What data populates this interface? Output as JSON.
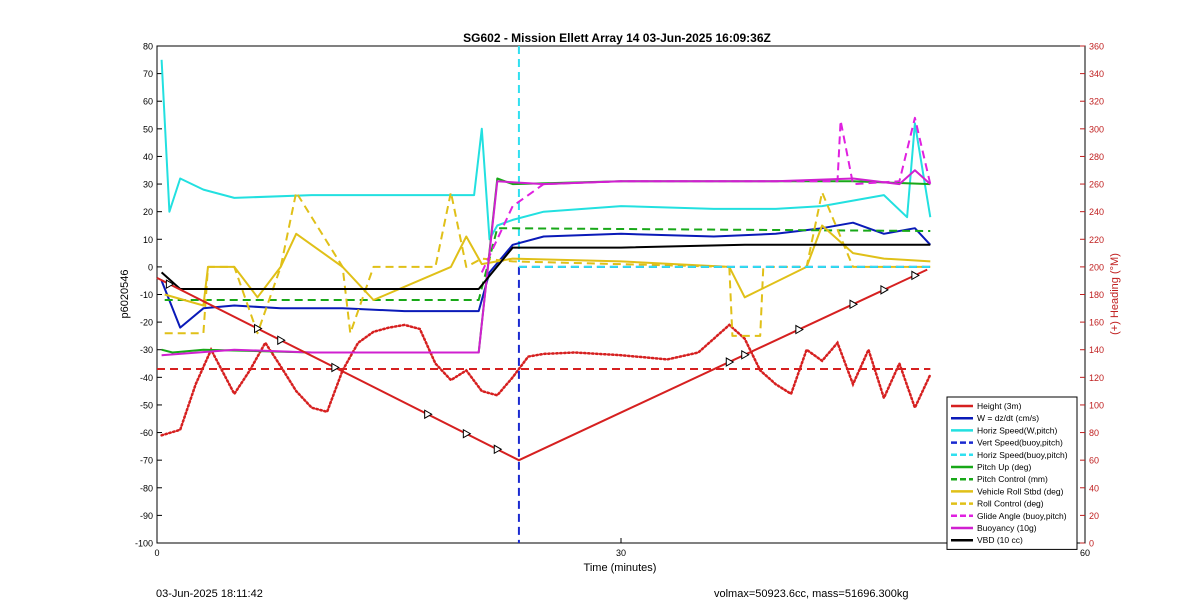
{
  "footer": {
    "timestamp": "03-Jun-2025 18:11:42",
    "info": "volmax=50923.6cc, mass=51696.300kg"
  },
  "chart_data": {
    "type": "line",
    "title": "SG602 - Mission Ellett Array 14 03-Jun-2025 16:09:36Z",
    "xlabel": "Time (minutes)",
    "ylabel": "p6020546",
    "y2label": "(+) Heading (°M)",
    "xlim": [
      0,
      60
    ],
    "ylim": [
      -100,
      80
    ],
    "y2lim": [
      0,
      360
    ],
    "xticks": [
      0,
      30,
      60
    ],
    "yticks": [
      -100,
      -90,
      -80,
      -70,
      -60,
      -50,
      -40,
      -30,
      -20,
      -10,
      0,
      10,
      20,
      30,
      40,
      50,
      60,
      70,
      80
    ],
    "y2ticks": [
      0,
      20,
      40,
      60,
      80,
      100,
      120,
      140,
      160,
      180,
      200,
      220,
      240,
      260,
      280,
      300,
      320,
      340,
      360
    ],
    "grid": false,
    "legend_position": "bottom-right",
    "apogee_time": 23.4,
    "series": [
      {
        "name": "Height (3m)",
        "color": "#d62020",
        "style": "solid",
        "x": [
          0,
          23.4,
          49.8
        ],
        "y": [
          -4,
          -70,
          -1
        ]
      },
      {
        "name": "W = dz/dt (cm/s)",
        "color": "#0a1ab8",
        "style": "solid",
        "x": [
          0.3,
          1.5,
          3,
          5,
          8,
          12,
          16,
          20.8,
          21.5,
          23,
          25,
          30,
          36,
          40,
          43,
          45,
          47,
          49,
          50
        ],
        "y": [
          -5,
          -22,
          -15,
          -14,
          -15,
          -15,
          -16,
          -16,
          -2,
          8,
          11,
          12,
          11,
          12,
          14,
          16,
          12,
          14,
          8
        ]
      },
      {
        "name": "Horiz Speed(W,pitch)",
        "color": "#22e0e0",
        "style": "solid",
        "x": [
          0.3,
          0.8,
          1.5,
          3,
          5,
          10,
          15,
          20.5,
          21,
          21.5,
          22,
          23,
          25,
          30,
          36,
          40,
          43,
          45,
          47,
          48.5,
          49,
          50
        ],
        "y": [
          75,
          20,
          32,
          28,
          25,
          26,
          26,
          26,
          50,
          10,
          15,
          17,
          20,
          22,
          21,
          21,
          22,
          24,
          26,
          18,
          52,
          18
        ]
      },
      {
        "name": "Vert Speed(buoy,pitch)",
        "color": "#1a2ad0",
        "style": "dashed",
        "x": [
          23.4,
          50
        ],
        "y": [
          0,
          0
        ]
      },
      {
        "name": "Horiz Speed(buoy,pitch)",
        "color": "#30e0f0",
        "style": "dashed",
        "x": [
          23.4,
          50
        ],
        "y": [
          0,
          0
        ]
      },
      {
        "name": "Pitch Up (deg)",
        "color": "#18a818",
        "style": "solid",
        "x": [
          0.3,
          1,
          3,
          10,
          20.8,
          22,
          23,
          30,
          40,
          45,
          50
        ],
        "y": [
          -30,
          -31,
          -30,
          -31,
          -31,
          32,
          30,
          31,
          31,
          31,
          30
        ]
      },
      {
        "name": "Pitch Control (mm)",
        "color": "#18a818",
        "style": "dashed",
        "x": [
          0.5,
          20.8,
          22,
          50
        ],
        "y": [
          -12,
          -12,
          14,
          13
        ]
      },
      {
        "name": "Vehicle Roll Stbd (deg)",
        "color": "#e0c018",
        "style": "solid",
        "x": [
          0.5,
          3,
          3.3,
          5,
          6.5,
          8,
          9,
          12,
          14,
          19,
          20,
          21,
          23,
          30,
          37,
          38,
          42,
          43,
          45,
          47,
          50
        ],
        "y": [
          -10,
          -14,
          0,
          0,
          -11,
          0,
          12,
          0,
          -12,
          0,
          11,
          1,
          3,
          2,
          0,
          -11,
          0,
          15,
          5,
          3,
          2
        ]
      },
      {
        "name": "Roll Control (deg)",
        "color": "#e0c018",
        "style": "dashed",
        "x": [
          0.5,
          3,
          3.3,
          5,
          6.5,
          8,
          9,
          12,
          12.5,
          14,
          18,
          19,
          20,
          21,
          23,
          37,
          37.2,
          39,
          39.2,
          42,
          43,
          45,
          50
        ],
        "y": [
          -24,
          -24,
          0,
          0,
          -24,
          0,
          27,
          0,
          -24,
          0,
          0,
          27,
          0,
          3,
          2,
          0,
          -25,
          -25,
          0,
          0,
          27,
          0,
          0
        ]
      },
      {
        "name": "Glide Angle (buoy,pitch)",
        "color": "#e020e0",
        "style": "dashed",
        "x": [
          21,
          23,
          25,
          30,
          44,
          44.2,
          45,
          48,
          49,
          50
        ],
        "y": [
          -2,
          22,
          30,
          31,
          31,
          53,
          30,
          31,
          54,
          30
        ]
      },
      {
        "name": "Buoyancy (10g)",
        "color": "#d020d0",
        "style": "solid",
        "x": [
          0.3,
          5,
          10,
          20.8,
          22,
          25,
          30,
          40,
          45,
          48,
          49,
          50
        ],
        "y": [
          -32,
          -30,
          -31,
          -31,
          31,
          30,
          31,
          31,
          32,
          30,
          35,
          30
        ]
      },
      {
        "name": "VBD (10 cc)",
        "color": "#000000",
        "style": "solid",
        "x": [
          0.3,
          1.5,
          20.8,
          23,
          30,
          38,
          50
        ],
        "y": [
          -2,
          -8,
          -8,
          7,
          7,
          8,
          8
        ]
      }
    ],
    "heading": {
      "name": "Heading",
      "color": "#d62020",
      "axis": "right",
      "x": [
        0.3,
        1.5,
        2.5,
        3.5,
        5,
        6,
        7,
        8,
        9,
        10,
        11,
        12,
        13,
        14,
        15,
        16,
        17,
        18,
        19,
        20,
        21,
        22,
        23,
        24,
        25,
        27,
        30,
        33,
        35,
        37,
        38,
        39,
        40,
        41,
        42,
        43,
        44,
        45,
        46,
        47,
        48,
        49,
        50
      ],
      "y": [
        78,
        82,
        115,
        140,
        108,
        125,
        145,
        128,
        110,
        98,
        95,
        125,
        145,
        153,
        156,
        158,
        155,
        130,
        118,
        125,
        110,
        107,
        120,
        135,
        137,
        138,
        136,
        133,
        138,
        158,
        148,
        125,
        115,
        108,
        140,
        132,
        145,
        115,
        140,
        105,
        130,
        98,
        122
      ],
      "target": 126
    }
  }
}
